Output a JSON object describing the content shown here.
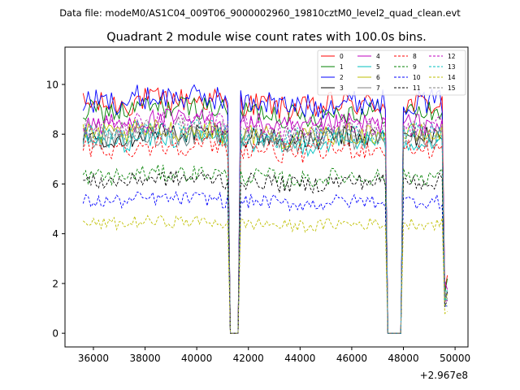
{
  "header": {
    "suptitle": "Data file: modeM0/AS1C04_009T06_9000002960_19810cztM0_level2_quad_clean.evt",
    "title": "Quadrant 2 module wise count rates with 100.0s bins."
  },
  "chart_data": {
    "type": "line",
    "title": "Quadrant 2 module wise count rates with 100.0s bins.",
    "xlabel": "",
    "ylabel": "",
    "x_offset_label": "+2.967e8",
    "xlim": [
      34900,
      50500
    ],
    "ylim": [
      -0.55,
      11.5
    ],
    "xticks": [
      36000,
      38000,
      40000,
      42000,
      44000,
      46000,
      48000,
      50000
    ],
    "yticks": [
      0,
      2,
      4,
      6,
      8,
      10
    ],
    "grid": false,
    "legend_location": "top-right",
    "legend_columns": 4,
    "gaps": [
      [
        41200,
        41700
      ],
      [
        47300,
        48000
      ]
    ],
    "x_range": [
      35600,
      49700
    ],
    "bin_seconds": 100,
    "series": [
      {
        "name": "0",
        "color": "#ff0000",
        "style": "solid",
        "approx_level": 9.2
      },
      {
        "name": "1",
        "color": "#008000",
        "style": "solid",
        "approx_level": 8.9
      },
      {
        "name": "2",
        "color": "#0000ff",
        "style": "solid",
        "approx_level": 9.3
      },
      {
        "name": "3",
        "color": "#000000",
        "style": "solid",
        "approx_level": 7.9
      },
      {
        "name": "4",
        "color": "#bf00bf",
        "style": "solid",
        "approx_level": 8.4
      },
      {
        "name": "5",
        "color": "#00bfbf",
        "style": "solid",
        "approx_level": 7.7
      },
      {
        "name": "6",
        "color": "#bfbf00",
        "style": "solid",
        "approx_level": 8.0
      },
      {
        "name": "7",
        "color": "#808080",
        "style": "solid",
        "approx_level": 7.8
      },
      {
        "name": "8",
        "color": "#ff0000",
        "style": "dashed",
        "approx_level": 7.4
      },
      {
        "name": "9",
        "color": "#008000",
        "style": "dashed",
        "approx_level": 6.3
      },
      {
        "name": "10",
        "color": "#0000ff",
        "style": "dashed",
        "approx_level": 5.3
      },
      {
        "name": "11",
        "color": "#000000",
        "style": "dashed",
        "approx_level": 6.1
      },
      {
        "name": "12",
        "color": "#bf00bf",
        "style": "dashed",
        "approx_level": 8.3
      },
      {
        "name": "13",
        "color": "#00bfbf",
        "style": "dashed",
        "approx_level": 8.0
      },
      {
        "name": "14",
        "color": "#bfbf00",
        "style": "dashed",
        "approx_level": 4.4
      },
      {
        "name": "15",
        "color": "#808080",
        "style": "dashed",
        "approx_level": 8.1
      }
    ]
  }
}
